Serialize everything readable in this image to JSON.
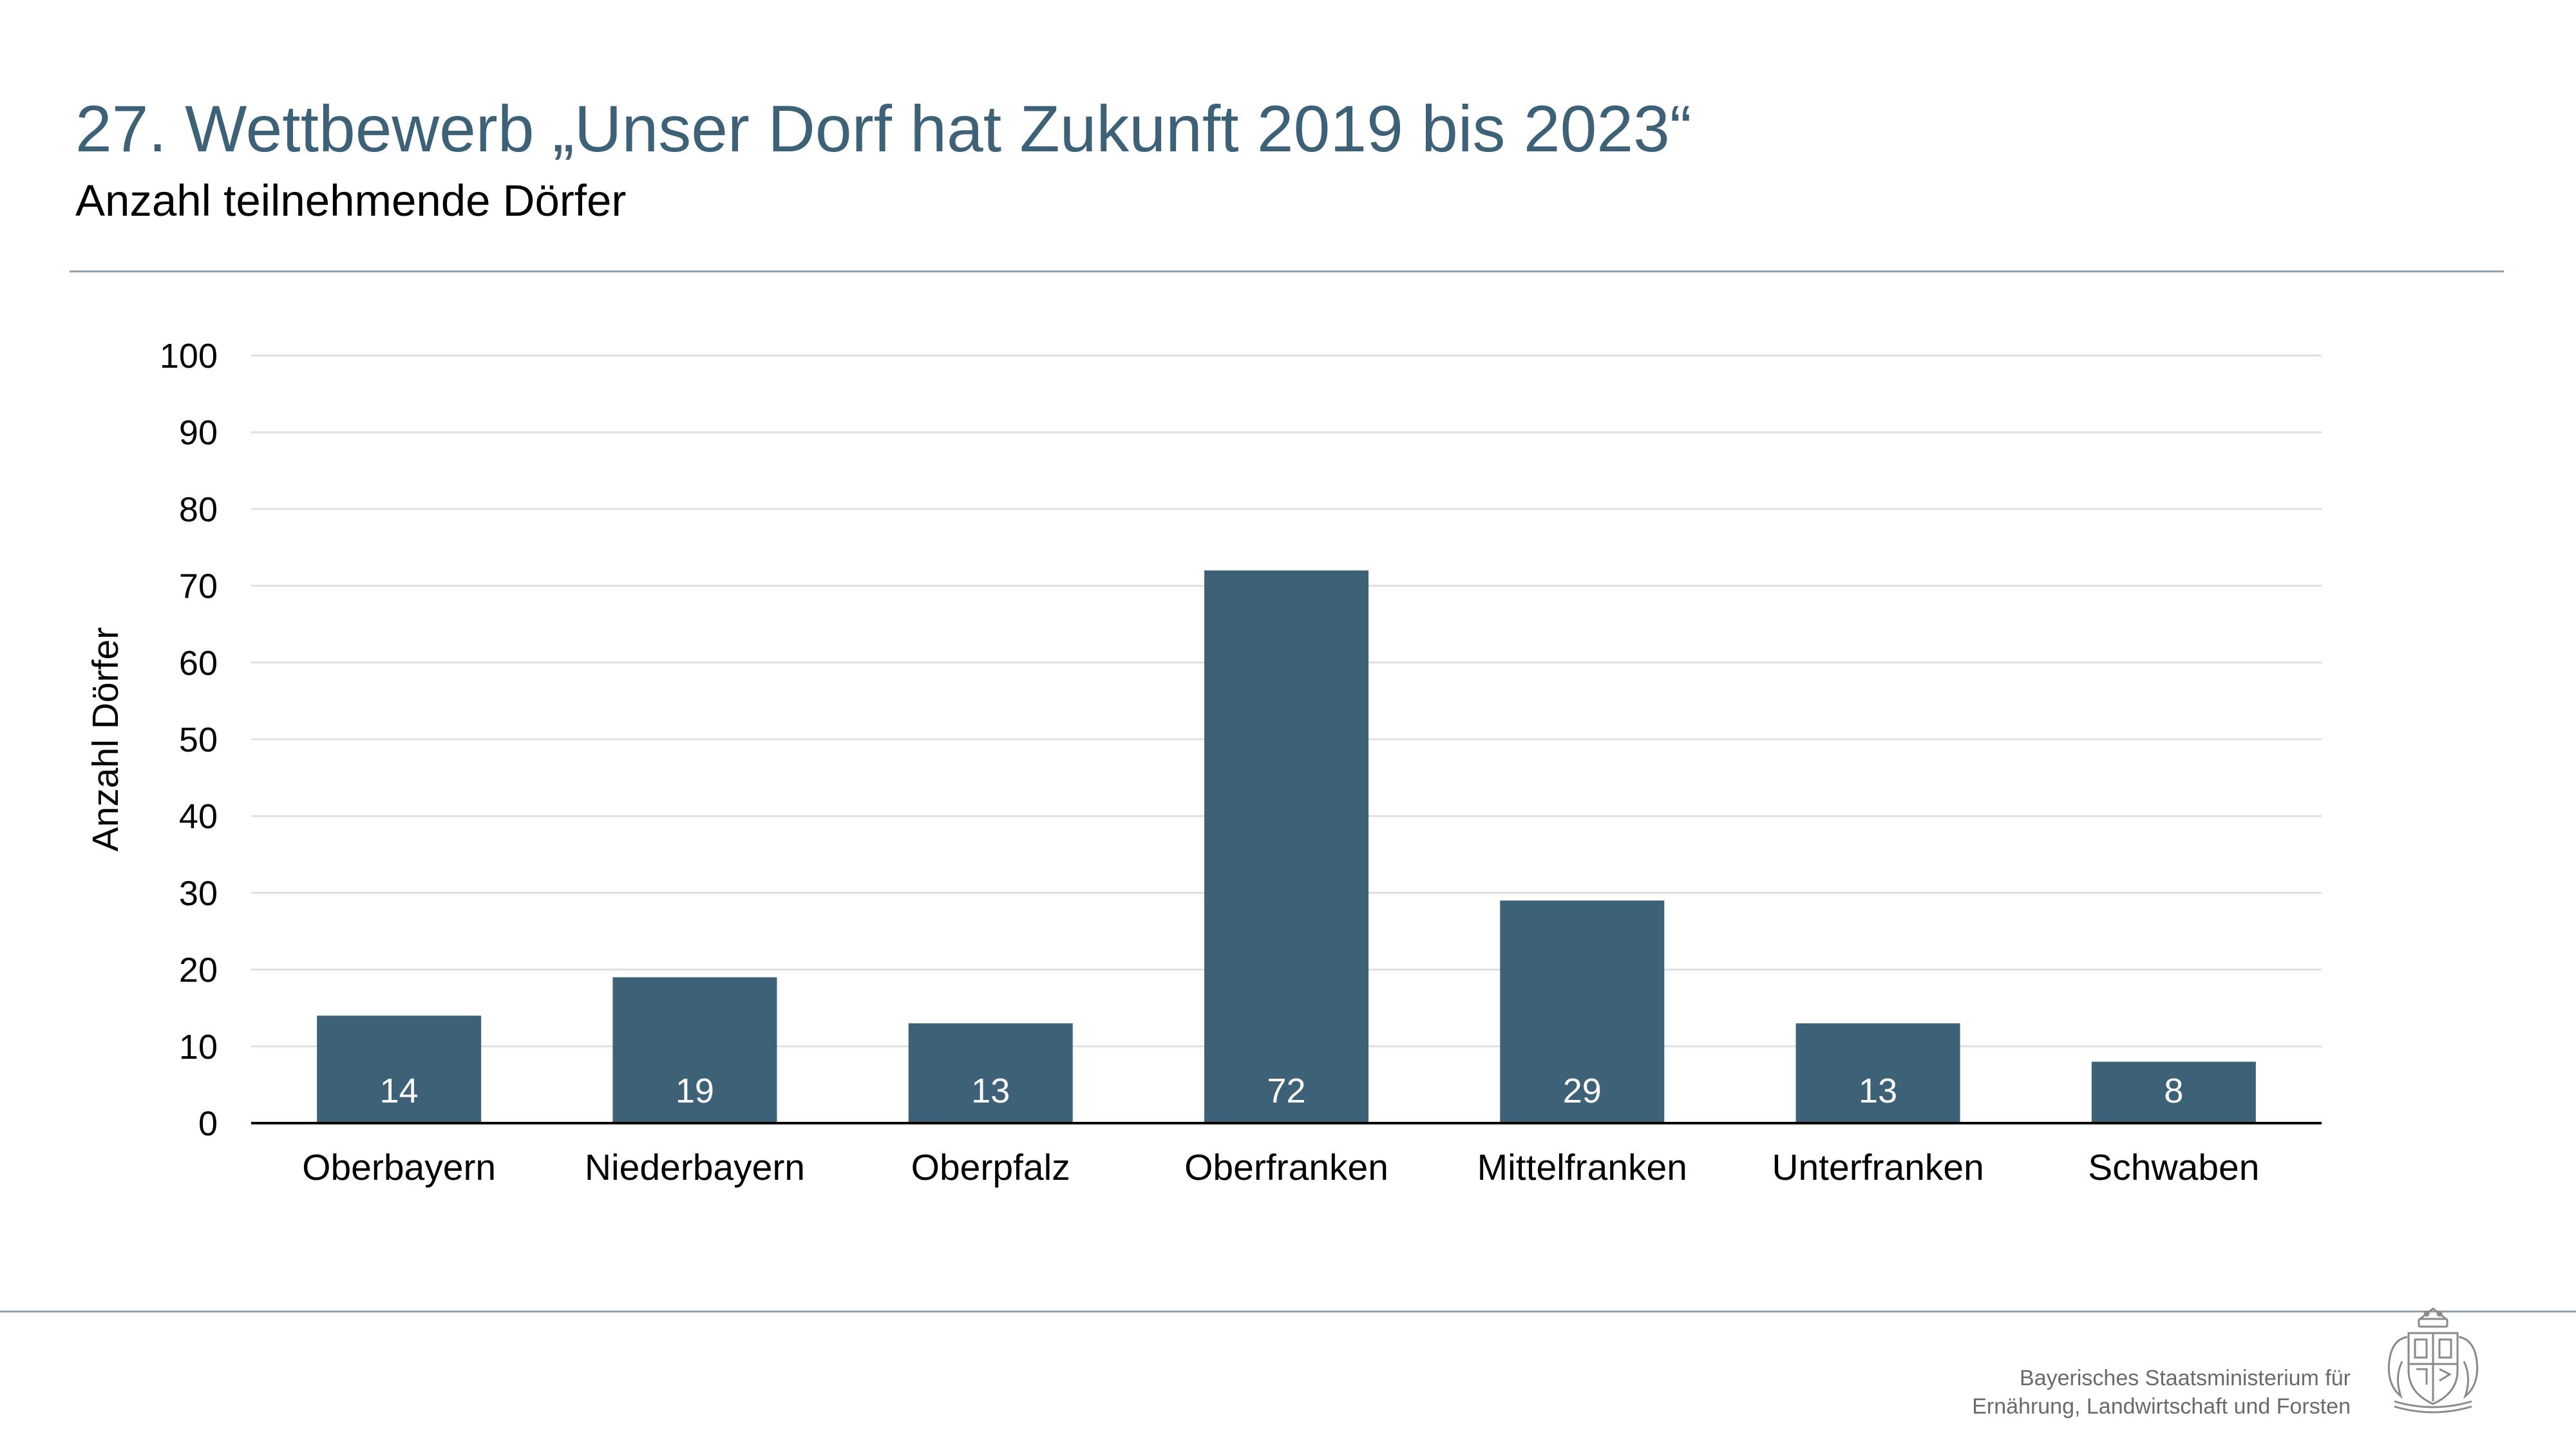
{
  "header": {
    "title": "27. Wettbewerb „Unser Dorf hat Zukunft 2019 bis 2023“",
    "subtitle": "Anzahl teilnehmende Dörfer"
  },
  "footer": {
    "line1": "Bayerisches Staatsministerium für",
    "line2": "Ernährung, Landwirtschaft und Forsten",
    "logo_icon": "bavarian-coat-of-arms-icon"
  },
  "colors": {
    "bar": "#3d6176",
    "title": "#3d6176",
    "bar_label": "#ffffff",
    "grid": "#e0e0e0",
    "axis": "#000000"
  },
  "chart_data": {
    "type": "bar",
    "title": "",
    "xlabel": "",
    "ylabel": "Anzahl Dörfer",
    "categories": [
      "Oberbayern",
      "Niederbayern",
      "Oberpfalz",
      "Oberfranken",
      "Mittelfranken",
      "Unterfranken",
      "Schwaben"
    ],
    "values": [
      14,
      19,
      13,
      72,
      29,
      13,
      8
    ],
    "data_labels": [
      "14",
      "19",
      "13",
      "72",
      "29",
      "13",
      "8"
    ],
    "ylim": [
      0,
      100
    ],
    "yticks": [
      0,
      10,
      20,
      30,
      40,
      50,
      60,
      70,
      80,
      90,
      100
    ],
    "grid": true,
    "legend": "none"
  }
}
